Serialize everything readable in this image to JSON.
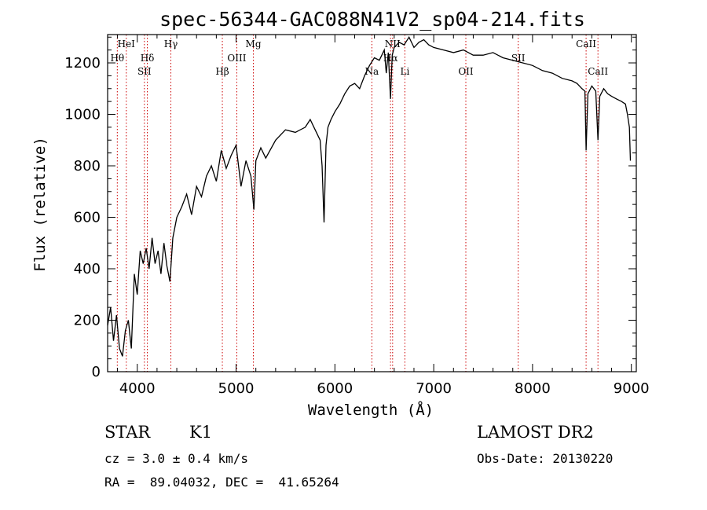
{
  "chart_data": {
    "type": "line",
    "title": "spec-56344-GAC088N41V2_sp04-214.fits",
    "xlabel": "Wavelength (Å)",
    "ylabel": "Flux (relative)",
    "xlim": [
      3700,
      9050
    ],
    "ylim": [
      0,
      1310
    ],
    "x_ticks": [
      4000,
      5000,
      6000,
      7000,
      8000,
      9000
    ],
    "y_ticks": [
      0,
      200,
      400,
      600,
      800,
      1000,
      1200
    ],
    "grid": false,
    "line_color": "#000000",
    "marker_color": "#cc0000",
    "series": [
      {
        "x": [
          3700,
          3730,
          3760,
          3790,
          3820,
          3850,
          3880,
          3910,
          3940,
          3970,
          4000,
          4030,
          4060,
          4090,
          4120,
          4150,
          4180,
          4210,
          4240,
          4270,
          4300,
          4330,
          4360,
          4400,
          4450,
          4500,
          4550,
          4600,
          4650,
          4700,
          4750,
          4800,
          4850,
          4900,
          4950,
          5000,
          5050,
          5100,
          5150,
          5180,
          5200,
          5250,
          5300,
          5400,
          5500,
          5600,
          5700,
          5750,
          5800,
          5850,
          5870,
          5890,
          5910,
          5930,
          5960,
          6000,
          6050,
          6100,
          6150,
          6200,
          6250,
          6300,
          6350,
          6400,
          6450,
          6500,
          6520,
          6540,
          6563,
          6580,
          6600,
          6650,
          6700,
          6750,
          6800,
          6850,
          6900,
          6950,
          7000,
          7100,
          7200,
          7300,
          7400,
          7500,
          7600,
          7700,
          7800,
          7900,
          8000,
          8100,
          8200,
          8300,
          8400,
          8450,
          8500,
          8530,
          8542,
          8560,
          8600,
          8640,
          8662,
          8680,
          8720,
          8760,
          8800,
          8850,
          8900,
          8940,
          8960,
          8980,
          8990
        ],
        "y": [
          180,
          250,
          120,
          220,
          90,
          60,
          160,
          200,
          90,
          380,
          300,
          470,
          420,
          480,
          400,
          520,
          420,
          470,
          380,
          500,
          410,
          350,
          520,
          600,
          640,
          690,
          610,
          720,
          680,
          760,
          800,
          740,
          860,
          790,
          840,
          880,
          720,
          820,
          760,
          630,
          820,
          870,
          830,
          900,
          940,
          930,
          950,
          980,
          940,
          900,
          800,
          580,
          880,
          950,
          980,
          1010,
          1040,
          1080,
          1110,
          1120,
          1100,
          1150,
          1190,
          1220,
          1210,
          1250,
          1160,
          1240,
          1060,
          1230,
          1260,
          1280,
          1270,
          1300,
          1260,
          1280,
          1290,
          1270,
          1260,
          1250,
          1240,
          1250,
          1230,
          1230,
          1240,
          1220,
          1210,
          1200,
          1190,
          1170,
          1160,
          1140,
          1130,
          1120,
          1100,
          1090,
          860,
          1080,
          1110,
          1090,
          900,
          1070,
          1100,
          1080,
          1070,
          1060,
          1050,
          1040,
          1000,
          950,
          820
        ]
      }
    ],
    "lines": [
      {
        "label": "Hθ",
        "wl": 3798,
        "row": 2
      },
      {
        "label": "HeI",
        "wl": 3889,
        "row": 1
      },
      {
        "label": "Hδ",
        "wl": 4102,
        "row": 2
      },
      {
        "label": "SII",
        "wl": 4072,
        "row": 3
      },
      {
        "label": "Hγ",
        "wl": 4340,
        "row": 1
      },
      {
        "label": "Hβ",
        "wl": 4861,
        "row": 3
      },
      {
        "label": "OIII",
        "wl": 5007,
        "row": 2
      },
      {
        "label": "Mg",
        "wl": 5175,
        "row": 1
      },
      {
        "label": "NII",
        "wl": 6584,
        "row": 1
      },
      {
        "label": "Hα",
        "wl": 6563,
        "row": 2
      },
      {
        "label": "Na",
        "wl": 6374,
        "row": 3
      },
      {
        "label": "Li",
        "wl": 6708,
        "row": 3
      },
      {
        "label": "OII",
        "wl": 7325,
        "row": 3
      },
      {
        "label": "SII",
        "wl": 7855,
        "row": 2
      },
      {
        "label": "CaII",
        "wl": 8542,
        "row": 1
      },
      {
        "label": "CaII",
        "wl": 8662,
        "row": 3
      }
    ]
  },
  "info": {
    "object_class": "STAR",
    "subclass": "K1",
    "survey": "LAMOST DR2",
    "cz": "cz = 3.0 ± 0.4 km/s",
    "obs_date": "Obs-Date: 20130220",
    "coords": "RA =  89.04032, DEC =  41.65264"
  }
}
